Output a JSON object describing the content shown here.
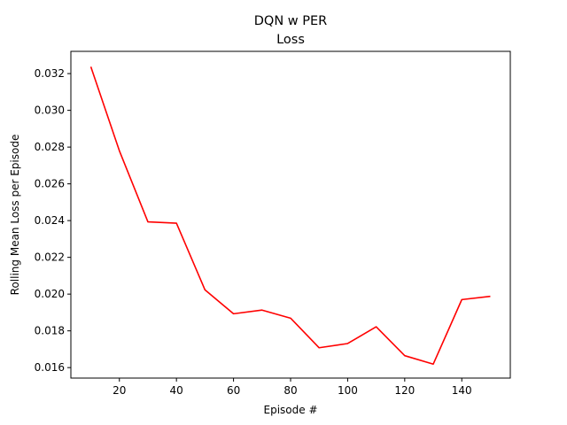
{
  "chart_data": {
    "type": "line",
    "title": "DQN w PER",
    "subtitle": "Loss",
    "xlabel": "Episode #",
    "ylabel": "Rolling Mean Loss per Episode",
    "xlim": [
      3,
      157
    ],
    "ylim": [
      0.01543,
      0.03321
    ],
    "xticks": [
      20,
      40,
      60,
      80,
      100,
      120,
      140
    ],
    "yticks": [
      0.016,
      0.018,
      0.02,
      0.022,
      0.024,
      0.026,
      0.028,
      0.03,
      0.032
    ],
    "ytick_labels": [
      "0.016",
      "0.018",
      "0.020",
      "0.022",
      "0.024",
      "0.026",
      "0.028",
      "0.030",
      "0.032"
    ],
    "grid": false,
    "series": [
      {
        "color": "#ff0000",
        "x": [
          10,
          20,
          30,
          40,
          50,
          60,
          70,
          80,
          90,
          100,
          110,
          120,
          130,
          140,
          150
        ],
        "y": [
          0.03237,
          0.0278,
          0.02393,
          0.02386,
          0.02023,
          0.01893,
          0.01913,
          0.01869,
          0.01708,
          0.01731,
          0.01822,
          0.01665,
          0.01619,
          0.0197,
          0.01988
        ]
      }
    ]
  }
}
